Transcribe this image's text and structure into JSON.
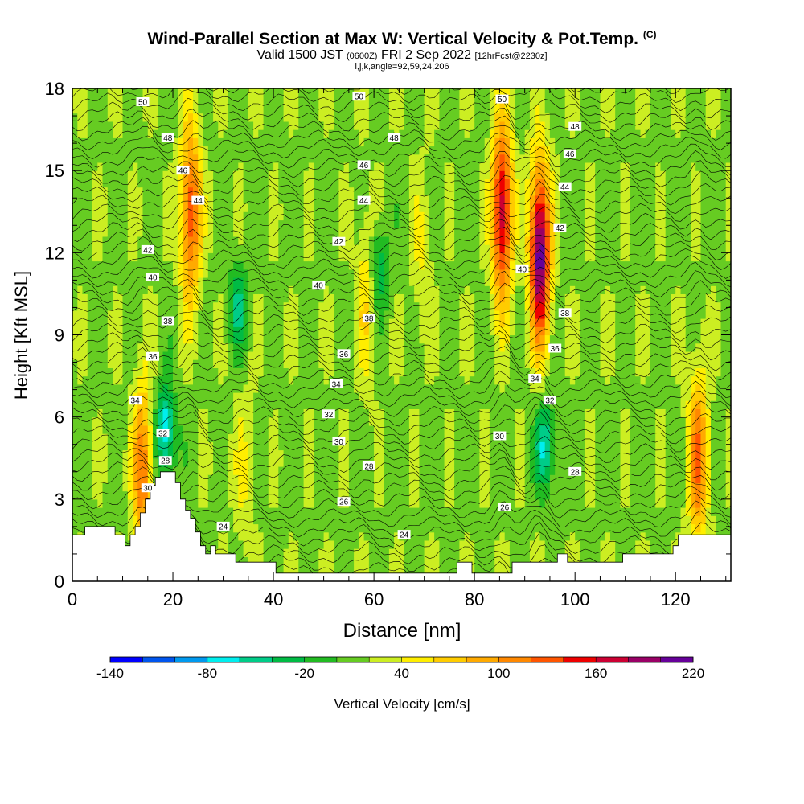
{
  "title": {
    "main": "Wind-Parallel Section at Max W: Vertical Velocity & Pot.Temp.",
    "main_tag": "(C)",
    "valid_prefix": "Valid 1500 JST",
    "valid_zulu": "(0600Z)",
    "valid_date": "FRI 2 Sep 2022",
    "forecast_info": "[12hrFcst@2230z]",
    "indices": "i,j,k,angle=92,59,24,206"
  },
  "chart_data": {
    "type": "heatmap",
    "xlabel": "Distance [nm]",
    "ylabel": "Height [Kft MSL]",
    "xlim": [
      0,
      131
    ],
    "ylim": [
      0,
      18
    ],
    "x_ticks": [
      "0",
      "20",
      "40",
      "60",
      "80",
      "100",
      "120"
    ],
    "y_ticks": [
      "0",
      "3",
      "6",
      "9",
      "12",
      "15",
      "18"
    ],
    "background_w": 15,
    "updrafts": [
      {
        "x": 85.5,
        "y": 13.5,
        "peak_w": 180
      },
      {
        "x": 93.0,
        "y": 12.0,
        "peak_w": 220
      },
      {
        "x": 23.5,
        "y": 13.5,
        "peak_w": 140
      },
      {
        "x": 58.5,
        "y": 10.5,
        "peak_w": 60
      },
      {
        "x": 69.5,
        "y": 12.0,
        "peak_w": 40
      },
      {
        "x": 124.5,
        "y": 4.5,
        "peak_w": 120
      },
      {
        "x": 14.0,
        "y": 4.0,
        "peak_w": 120
      },
      {
        "x": 34.0,
        "y": 4.0,
        "peak_w": 40
      }
    ],
    "downdrafts": [
      {
        "x": 33.0,
        "y": 10.0,
        "peak_w": -40
      },
      {
        "x": 18.5,
        "y": 5.5,
        "peak_w": -80
      },
      {
        "x": 94.0,
        "y": 5.0,
        "peak_w": -60
      },
      {
        "x": 61.0,
        "y": 11.5,
        "peak_w": -40
      }
    ],
    "theta_levels": [
      "24",
      "26",
      "28",
      "30",
      "32",
      "34",
      "36",
      "38",
      "40",
      "42",
      "44",
      "46",
      "48",
      "50"
    ],
    "theta_labels": [
      {
        "text": "50",
        "x": 14,
        "y": 17.5
      },
      {
        "text": "48",
        "x": 19,
        "y": 16.2
      },
      {
        "text": "46",
        "x": 22,
        "y": 15.0
      },
      {
        "text": "44",
        "x": 25,
        "y": 13.9
      },
      {
        "text": "42",
        "x": 15,
        "y": 12.1
      },
      {
        "text": "40",
        "x": 16,
        "y": 11.1
      },
      {
        "text": "38",
        "x": 19,
        "y": 9.5
      },
      {
        "text": "36",
        "x": 16,
        "y": 8.2
      },
      {
        "text": "34",
        "x": 12.5,
        "y": 6.6
      },
      {
        "text": "32",
        "x": 18,
        "y": 5.4
      },
      {
        "text": "30",
        "x": 15,
        "y": 3.4
      },
      {
        "text": "28",
        "x": 18.5,
        "y": 4.4
      },
      {
        "text": "24",
        "x": 30,
        "y": 2.0
      },
      {
        "text": "50",
        "x": 57,
        "y": 17.7
      },
      {
        "text": "48",
        "x": 64,
        "y": 16.2
      },
      {
        "text": "46",
        "x": 58,
        "y": 15.2
      },
      {
        "text": "44",
        "x": 58,
        "y": 13.9
      },
      {
        "text": "42",
        "x": 53,
        "y": 12.4
      },
      {
        "text": "40",
        "x": 49,
        "y": 10.8
      },
      {
        "text": "38",
        "x": 59,
        "y": 9.6
      },
      {
        "text": "36",
        "x": 54,
        "y": 8.3
      },
      {
        "text": "34",
        "x": 52.5,
        "y": 7.2
      },
      {
        "text": "32",
        "x": 51,
        "y": 6.1
      },
      {
        "text": "30",
        "x": 53,
        "y": 5.1
      },
      {
        "text": "28",
        "x": 59,
        "y": 4.2
      },
      {
        "text": "26",
        "x": 54,
        "y": 2.9
      },
      {
        "text": "24",
        "x": 66,
        "y": 1.7
      },
      {
        "text": "50",
        "x": 85.5,
        "y": 17.6
      },
      {
        "text": "48",
        "x": 100,
        "y": 16.6
      },
      {
        "text": "46",
        "x": 99,
        "y": 15.6
      },
      {
        "text": "44",
        "x": 98,
        "y": 14.4
      },
      {
        "text": "42",
        "x": 97,
        "y": 12.9
      },
      {
        "text": "40",
        "x": 89.5,
        "y": 11.4
      },
      {
        "text": "38",
        "x": 98,
        "y": 9.8
      },
      {
        "text": "36",
        "x": 96,
        "y": 8.5
      },
      {
        "text": "34",
        "x": 92,
        "y": 7.4
      },
      {
        "text": "32",
        "x": 95,
        "y": 6.6
      },
      {
        "text": "30",
        "x": 85,
        "y": 5.3
      },
      {
        "text": "28",
        "x": 100,
        "y": 4.0
      },
      {
        "text": "26",
        "x": 86,
        "y": 2.7
      }
    ],
    "terrain": [
      [
        0,
        1.7
      ],
      [
        2.5,
        1.7
      ],
      [
        2.5,
        2.0
      ],
      [
        8.5,
        2.0
      ],
      [
        8.5,
        1.7
      ],
      [
        10.5,
        1.7
      ],
      [
        10.5,
        1.3
      ],
      [
        11.5,
        1.3
      ],
      [
        11.5,
        1.7
      ],
      [
        12.5,
        1.7
      ],
      [
        12.5,
        2.0
      ],
      [
        13.5,
        2.0
      ],
      [
        13.5,
        2.5
      ],
      [
        14.5,
        2.5
      ],
      [
        14.5,
        3.0
      ],
      [
        15.5,
        3.0
      ],
      [
        15.5,
        3.5
      ],
      [
        16.5,
        3.5
      ],
      [
        16.5,
        3.8
      ],
      [
        17.5,
        3.8
      ],
      [
        17.5,
        4.0
      ],
      [
        20.5,
        4.0
      ],
      [
        20.5,
        3.6
      ],
      [
        21.5,
        3.6
      ],
      [
        21.5,
        3.0
      ],
      [
        22.5,
        3.0
      ],
      [
        22.5,
        2.6
      ],
      [
        23.5,
        2.6
      ],
      [
        23.5,
        2.3
      ],
      [
        24.5,
        2.3
      ],
      [
        24.5,
        1.8
      ],
      [
        25.5,
        1.8
      ],
      [
        25.5,
        1.3
      ],
      [
        26.5,
        1.3
      ],
      [
        26.5,
        1.0
      ],
      [
        27.5,
        1.0
      ],
      [
        27.5,
        1.3
      ],
      [
        28.5,
        1.3
      ],
      [
        28.5,
        1.0
      ],
      [
        32.5,
        1.0
      ],
      [
        32.5,
        0.7
      ],
      [
        40.5,
        0.7
      ],
      [
        40.5,
        0.3
      ],
      [
        76.5,
        0.3
      ],
      [
        76.5,
        0.7
      ],
      [
        79.5,
        0.7
      ],
      [
        79.5,
        0.3
      ],
      [
        87.5,
        0.3
      ],
      [
        87.5,
        0.7
      ],
      [
        96.5,
        0.7
      ],
      [
        96.5,
        1.0
      ],
      [
        98.5,
        1.0
      ],
      [
        98.5,
        0.7
      ],
      [
        109.5,
        0.7
      ],
      [
        109.5,
        1.0
      ],
      [
        119.5,
        1.0
      ],
      [
        119.5,
        1.3
      ],
      [
        120.5,
        1.3
      ],
      [
        120.5,
        1.7
      ],
      [
        131,
        1.7
      ]
    ]
  },
  "colorbar": {
    "label": "Vertical Velocity [cm/s]",
    "min": -140,
    "max": 220,
    "step": 20,
    "tick_labels": [
      "-140",
      "-80",
      "-20",
      "40",
      "100",
      "160",
      "220"
    ],
    "colors": [
      "#0000ff",
      "#0055ee",
      "#0099ee",
      "#00eeee",
      "#00cc88",
      "#00bb44",
      "#22bb22",
      "#66cc22",
      "#ccee22",
      "#ffee00",
      "#ffcc00",
      "#ffaa00",
      "#ff8800",
      "#ff5500",
      "#ee0000",
      "#cc0033",
      "#990066",
      "#660099"
    ]
  }
}
